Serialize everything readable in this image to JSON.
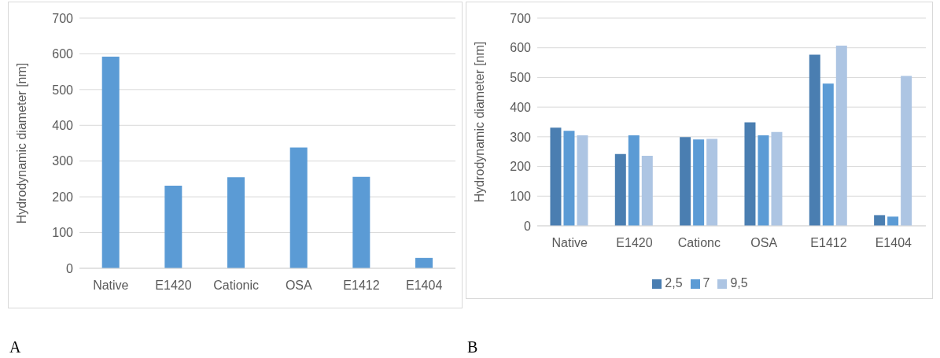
{
  "chart_data": [
    {
      "type": "bar",
      "ylabel": "Hydrodynamic diameter  [nm]",
      "categories": [
        "Native",
        "E1420",
        "Cationic",
        "OSA",
        "E1412",
        "E1404"
      ],
      "values": [
        592,
        231,
        255,
        338,
        256,
        29
      ],
      "color": "#5b9bd5",
      "ylim": [
        0,
        700
      ],
      "yticks": [
        0,
        100,
        200,
        300,
        400,
        500,
        600,
        700
      ],
      "grid": "y",
      "legend": false,
      "annotations": [
        "A"
      ]
    },
    {
      "type": "bar",
      "ylabel": "Hydrodynamic diameter  [nm]",
      "categories": [
        "Native",
        "E1420",
        "Cationc",
        "OSA",
        "E1412",
        "E1404"
      ],
      "series": [
        {
          "name": "2,5",
          "color": "#4a7eb1",
          "values": [
            331,
            242,
            299,
            349,
            577,
            36
          ]
        },
        {
          "name": "7",
          "color": "#5b9bd5",
          "values": [
            320,
            305,
            291,
            305,
            479,
            31
          ]
        },
        {
          "name": "9,5",
          "color": "#adc5e3",
          "values": [
            305,
            236,
            293,
            316,
            607,
            505
          ]
        }
      ],
      "ylim": [
        0,
        700
      ],
      "yticks": [
        0,
        100,
        200,
        300,
        400,
        500,
        600,
        700
      ],
      "grid": "y",
      "legend": "bottom",
      "annotations": [
        "B"
      ]
    }
  ]
}
